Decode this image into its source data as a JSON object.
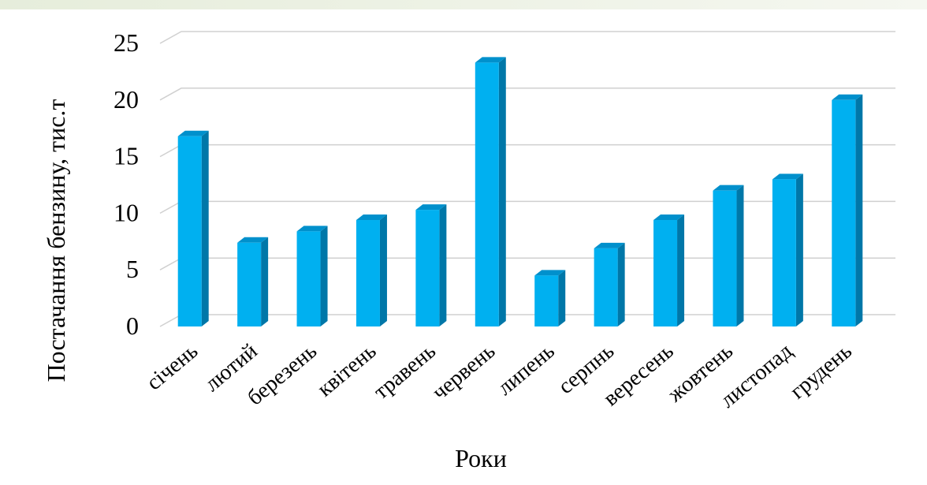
{
  "chart_data": {
    "type": "bar",
    "categories": [
      "січень",
      "лютий",
      "березень",
      "квітень",
      "травень",
      "червень",
      "липень",
      "серпнь",
      "вересень",
      "жовтень",
      "листопад",
      "грудень"
    ],
    "values": [
      16.8,
      7.4,
      8.4,
      9.4,
      10.3,
      23.3,
      4.5,
      6.9,
      9.4,
      12.0,
      13.0,
      20.0
    ],
    "ylabel": "Постачання бензину, тис.т",
    "xlabel": "Роки",
    "ylim": [
      0,
      25
    ],
    "yticks": [
      "0",
      "5",
      "10",
      "15",
      "20",
      "25"
    ],
    "grid": true,
    "style": "3d-column",
    "colors": {
      "bar_front": "#00b0f0",
      "bar_side": "#0077a8",
      "bar_top": "#0090cc",
      "grid": "#d0d0d0",
      "top_strip": "#e6eddb"
    }
  }
}
